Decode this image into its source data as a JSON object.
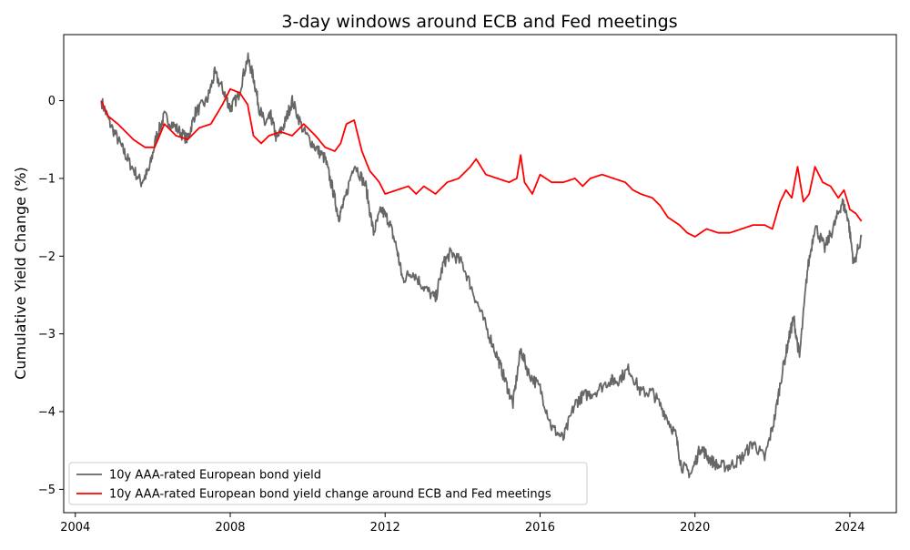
{
  "chart_data": {
    "type": "line",
    "title": "3-day windows around ECB and Fed meetings",
    "xlabel": "",
    "ylabel": "Cumulative Yield Change (%)",
    "xlim": [
      2003.7,
      2025.2
    ],
    "ylim": [
      -5.3,
      0.85
    ],
    "xticks": [
      2004,
      2008,
      2012,
      2016,
      2020,
      2024
    ],
    "xtick_labels": [
      "2004",
      "2008",
      "2012",
      "2016",
      "2020",
      "2024"
    ],
    "yticks": [
      0,
      -1,
      -2,
      -3,
      -4,
      -5
    ],
    "ytick_labels": [
      "0",
      "−1",
      "−2",
      "−3",
      "−4",
      "−5"
    ],
    "grid": false,
    "legend_position": "lower-left",
    "series": [
      {
        "name": "10y AAA-rated European bond yield",
        "color": "#666666",
        "x": [
          2004.67,
          2004.9,
          2005.2,
          2005.4,
          2005.7,
          2005.9,
          2006.1,
          2006.3,
          2006.6,
          2006.9,
          2007.1,
          2007.4,
          2007.6,
          2007.85,
          2008.0,
          2008.2,
          2008.45,
          2008.6,
          2008.75,
          2008.9,
          2009.05,
          2009.2,
          2009.4,
          2009.6,
          2009.9,
          2010.2,
          2010.45,
          2010.65,
          2010.8,
          2010.95,
          2011.2,
          2011.5,
          2011.7,
          2011.9,
          2012.1,
          2012.3,
          2012.45,
          2012.7,
          2013.0,
          2013.3,
          2013.5,
          2013.7,
          2014.0,
          2014.3,
          2014.6,
          2014.9,
          2015.1,
          2015.3,
          2015.5,
          2015.7,
          2016.0,
          2016.3,
          2016.6,
          2016.9,
          2017.1,
          2017.4,
          2017.8,
          2018.0,
          2018.3,
          2018.6,
          2018.9,
          2019.2,
          2019.5,
          2019.65,
          2019.9,
          2020.15,
          2020.35,
          2020.6,
          2020.9,
          2021.2,
          2021.5,
          2021.8,
          2022.05,
          2022.25,
          2022.45,
          2022.55,
          2022.7,
          2022.9,
          2023.1,
          2023.35,
          2023.6,
          2023.8,
          2023.95,
          2024.1,
          2024.3
        ],
        "y": [
          0.0,
          -0.3,
          -0.6,
          -0.8,
          -1.05,
          -0.9,
          -0.45,
          -0.2,
          -0.35,
          -0.5,
          -0.15,
          0.0,
          0.35,
          0.1,
          -0.1,
          0.05,
          0.55,
          0.3,
          -0.1,
          -0.3,
          -0.2,
          -0.5,
          -0.3,
          0.0,
          -0.4,
          -0.6,
          -0.75,
          -1.15,
          -1.5,
          -1.3,
          -0.8,
          -1.1,
          -1.7,
          -1.4,
          -1.55,
          -1.9,
          -2.3,
          -2.2,
          -2.4,
          -2.55,
          -2.1,
          -1.95,
          -2.1,
          -2.5,
          -2.9,
          -3.3,
          -3.6,
          -3.9,
          -3.2,
          -3.5,
          -3.7,
          -4.2,
          -4.35,
          -3.9,
          -3.8,
          -3.75,
          -3.6,
          -3.6,
          -3.45,
          -3.75,
          -3.75,
          -4.0,
          -4.3,
          -4.7,
          -4.8,
          -4.45,
          -4.6,
          -4.7,
          -4.7,
          -4.6,
          -4.4,
          -4.6,
          -4.1,
          -3.5,
          -3.0,
          -2.8,
          -3.3,
          -2.2,
          -1.6,
          -1.9,
          -1.6,
          -1.3,
          -1.5,
          -2.1,
          -1.75
        ]
      },
      {
        "name": "10y AAA-rated European bond yield change around ECB and Fed meetings",
        "color": "#ff0000",
        "x": [
          2004.67,
          2004.85,
          2005.1,
          2005.5,
          2005.8,
          2006.05,
          2006.3,
          2006.6,
          2006.9,
          2007.2,
          2007.5,
          2007.8,
          2008.0,
          2008.25,
          2008.45,
          2008.6,
          2008.8,
          2009.0,
          2009.3,
          2009.6,
          2009.9,
          2010.2,
          2010.45,
          2010.7,
          2010.85,
          2011.0,
          2011.2,
          2011.4,
          2011.6,
          2011.85,
          2012.0,
          2012.3,
          2012.6,
          2012.8,
          2013.0,
          2013.3,
          2013.6,
          2013.9,
          2014.2,
          2014.35,
          2014.6,
          2014.9,
          2015.2,
          2015.4,
          2015.5,
          2015.6,
          2015.8,
          2016.0,
          2016.3,
          2016.6,
          2016.9,
          2017.1,
          2017.3,
          2017.6,
          2017.9,
          2018.2,
          2018.4,
          2018.6,
          2018.9,
          2019.1,
          2019.3,
          2019.6,
          2019.8,
          2020.0,
          2020.3,
          2020.6,
          2020.9,
          2021.2,
          2021.5,
          2021.8,
          2022.0,
          2022.2,
          2022.35,
          2022.5,
          2022.65,
          2022.8,
          2022.95,
          2023.1,
          2023.3,
          2023.5,
          2023.7,
          2023.85,
          2024.0,
          2024.15,
          2024.3
        ],
        "y": [
          0.0,
          -0.2,
          -0.3,
          -0.5,
          -0.6,
          -0.6,
          -0.3,
          -0.45,
          -0.5,
          -0.35,
          -0.3,
          -0.05,
          0.15,
          0.1,
          -0.05,
          -0.45,
          -0.55,
          -0.45,
          -0.4,
          -0.45,
          -0.3,
          -0.45,
          -0.6,
          -0.65,
          -0.55,
          -0.3,
          -0.25,
          -0.65,
          -0.9,
          -1.05,
          -1.2,
          -1.15,
          -1.1,
          -1.2,
          -1.1,
          -1.2,
          -1.05,
          -1.0,
          -0.85,
          -0.75,
          -0.95,
          -1.0,
          -1.05,
          -1.0,
          -0.7,
          -1.05,
          -1.2,
          -0.95,
          -1.05,
          -1.05,
          -1.0,
          -1.1,
          -1.0,
          -0.95,
          -1.0,
          -1.05,
          -1.15,
          -1.2,
          -1.25,
          -1.35,
          -1.5,
          -1.6,
          -1.7,
          -1.75,
          -1.65,
          -1.7,
          -1.7,
          -1.65,
          -1.6,
          -1.6,
          -1.65,
          -1.3,
          -1.15,
          -1.25,
          -0.85,
          -1.3,
          -1.2,
          -0.85,
          -1.05,
          -1.1,
          -1.25,
          -1.15,
          -1.4,
          -1.45,
          -1.55
        ]
      }
    ]
  }
}
